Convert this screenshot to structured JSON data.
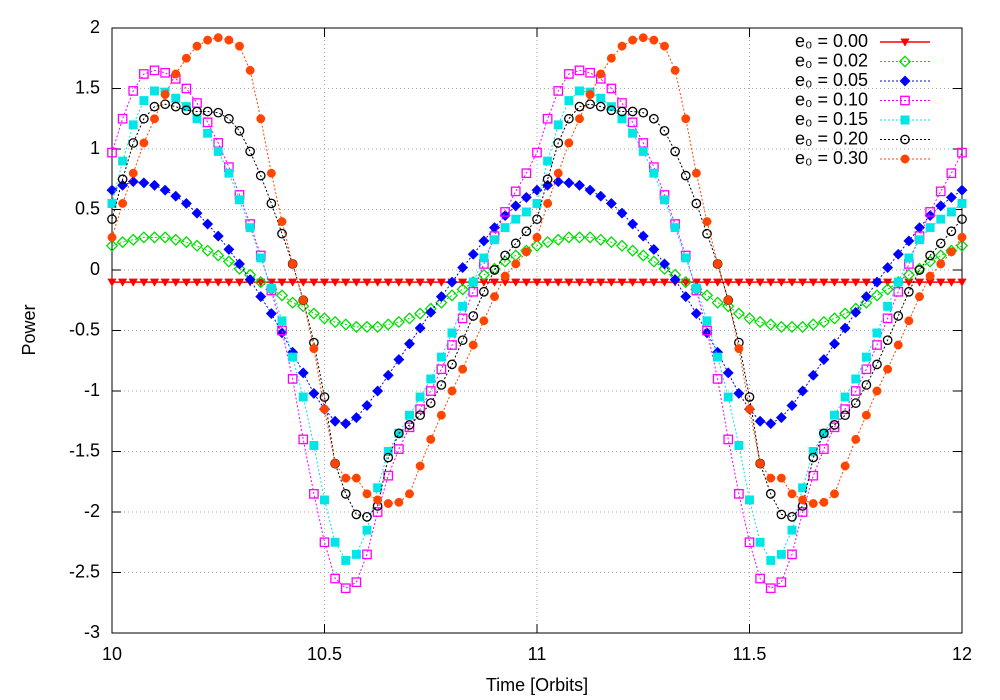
{
  "chart_data": {
    "type": "line",
    "x_label": "Time [Orbits]",
    "y_label": "Power",
    "xlim": [
      10,
      12
    ],
    "xticks": [
      10,
      10.5,
      11,
      11.5,
      12
    ],
    "ylim": [
      -3,
      2
    ],
    "yticks": [
      -3,
      -2.5,
      -2,
      -1.5,
      -1,
      -0.5,
      0,
      0.5,
      1,
      1.5,
      2
    ],
    "grid": true,
    "legend": "upper right",
    "x": [
      10,
      10.025,
      10.05,
      10.075,
      10.1,
      10.125,
      10.15,
      10.175,
      10.2,
      10.225,
      10.25,
      10.275,
      10.3,
      10.325,
      10.35,
      10.375,
      10.4,
      10.425,
      10.45,
      10.475,
      10.5,
      10.525,
      10.55,
      10.575,
      10.6,
      10.625,
      10.65,
      10.675,
      10.7,
      10.725,
      10.75,
      10.775,
      10.8,
      10.825,
      10.85,
      10.875,
      10.9,
      10.925,
      10.95,
      10.975,
      11,
      11.025,
      11.05,
      11.075,
      11.1,
      11.125,
      11.15,
      11.175,
      11.2,
      11.225,
      11.25,
      11.275,
      11.3,
      11.325,
      11.35,
      11.375,
      11.4,
      11.425,
      11.45,
      11.475,
      11.5,
      11.525,
      11.55,
      11.575,
      11.6,
      11.625,
      11.65,
      11.675,
      11.7,
      11.725,
      11.75,
      11.775,
      11.8,
      11.825,
      11.85,
      11.875,
      11.9,
      11.925,
      11.95,
      11.975,
      12
    ],
    "series": [
      {
        "name": "e₀ = 0.00",
        "color": "#ff0000",
        "marker": "triangle-down",
        "line_style": "solid",
        "values": [
          -0.1,
          -0.1,
          -0.1,
          -0.1,
          -0.1,
          -0.1,
          -0.1,
          -0.1,
          -0.1,
          -0.1,
          -0.1,
          -0.1,
          -0.1,
          -0.1,
          -0.1,
          -0.1,
          -0.1,
          -0.1,
          -0.1,
          -0.1,
          -0.1,
          -0.1,
          -0.1,
          -0.1,
          -0.1,
          -0.1,
          -0.1,
          -0.1,
          -0.1,
          -0.1,
          -0.1,
          -0.1,
          -0.1,
          -0.1,
          -0.1,
          -0.1,
          -0.1,
          -0.1,
          -0.1,
          -0.1,
          -0.1,
          -0.1,
          -0.1,
          -0.1,
          -0.1,
          -0.1,
          -0.1,
          -0.1,
          -0.1,
          -0.1,
          -0.1,
          -0.1,
          -0.1,
          -0.1,
          -0.1,
          -0.1,
          -0.1,
          -0.1,
          -0.1,
          -0.1,
          -0.1,
          -0.1,
          -0.1,
          -0.1,
          -0.1,
          -0.1,
          -0.1,
          -0.1,
          -0.1,
          -0.1,
          -0.1,
          -0.1,
          -0.1,
          -0.1,
          -0.1,
          -0.1,
          -0.1,
          -0.1,
          -0.1,
          -0.1,
          -0.1
        ]
      },
      {
        "name": "e₀ = 0.02",
        "color": "#00dd00",
        "marker": "diamond-open",
        "line_style": "dotted",
        "values": [
          0.2,
          0.23,
          0.25,
          0.27,
          0.27,
          0.27,
          0.25,
          0.23,
          0.2,
          0.16,
          0.12,
          0.07,
          0.01,
          -0.04,
          -0.1,
          -0.16,
          -0.21,
          -0.27,
          -0.3,
          -0.36,
          -0.4,
          -0.43,
          -0.45,
          -0.47,
          -0.47,
          -0.47,
          -0.45,
          -0.43,
          -0.4,
          -0.36,
          -0.32,
          -0.27,
          -0.21,
          -0.16,
          -0.1,
          -0.04,
          0.01,
          0.07,
          0.12,
          0.16,
          0.2,
          0.23,
          0.25,
          0.27,
          0.27,
          0.27,
          0.25,
          0.23,
          0.2,
          0.16,
          0.12,
          0.07,
          0.01,
          -0.04,
          -0.1,
          -0.16,
          -0.21,
          -0.27,
          -0.3,
          -0.36,
          -0.4,
          -0.43,
          -0.45,
          -0.47,
          -0.47,
          -0.47,
          -0.45,
          -0.43,
          -0.4,
          -0.36,
          -0.32,
          -0.27,
          -0.21,
          -0.16,
          -0.1,
          -0.04,
          0.01,
          0.07,
          0.12,
          0.16,
          0.2
        ]
      },
      {
        "name": "e₀ = 0.05",
        "color": "#0000ff",
        "marker": "diamond",
        "line_style": "dotted",
        "values": [
          0.66,
          0.7,
          0.73,
          0.72,
          0.7,
          0.66,
          0.61,
          0.55,
          0.47,
          0.38,
          0.28,
          0.17,
          0.05,
          -0.08,
          -0.22,
          -0.36,
          -0.52,
          -0.68,
          -0.85,
          -1.02,
          -1.15,
          -1.25,
          -1.27,
          -1.22,
          -1.12,
          -1.0,
          -0.87,
          -0.74,
          -0.61,
          -0.48,
          -0.35,
          -0.22,
          -0.1,
          0.02,
          0.13,
          0.24,
          0.35,
          0.45,
          0.53,
          0.6,
          0.66,
          0.7,
          0.73,
          0.72,
          0.7,
          0.66,
          0.61,
          0.55,
          0.47,
          0.38,
          0.28,
          0.17,
          0.05,
          -0.08,
          -0.22,
          -0.36,
          -0.52,
          -0.68,
          -0.85,
          -1.02,
          -1.15,
          -1.25,
          -1.27,
          -1.22,
          -1.12,
          -1.0,
          -0.87,
          -0.74,
          -0.61,
          -0.48,
          -0.35,
          -0.22,
          -0.1,
          0.02,
          0.13,
          0.24,
          0.35,
          0.45,
          0.53,
          0.6,
          0.66
        ]
      },
      {
        "name": "e₀ = 0.10",
        "color": "#ff00ff",
        "marker": "square-open",
        "line_style": "dotted",
        "values": [
          0.97,
          1.25,
          1.48,
          1.62,
          1.65,
          1.63,
          1.58,
          1.5,
          1.38,
          1.22,
          1.05,
          0.85,
          0.62,
          0.38,
          0.12,
          -0.17,
          -0.5,
          -0.9,
          -1.4,
          -1.85,
          -2.25,
          -2.55,
          -2.63,
          -2.58,
          -2.35,
          -2.0,
          -1.7,
          -1.48,
          -1.3,
          -1.15,
          -1.0,
          -0.82,
          -0.62,
          -0.4,
          -0.18,
          0.05,
          0.28,
          0.48,
          0.65,
          0.8,
          0.97,
          1.25,
          1.48,
          1.62,
          1.65,
          1.63,
          1.58,
          1.5,
          1.38,
          1.22,
          1.05,
          0.85,
          0.62,
          0.38,
          0.12,
          -0.17,
          -0.5,
          -0.9,
          -1.4,
          -1.85,
          -2.25,
          -2.55,
          -2.63,
          -2.58,
          -2.35,
          -2.0,
          -1.7,
          -1.48,
          -1.3,
          -1.15,
          -1.0,
          -0.82,
          -0.62,
          -0.4,
          -0.18,
          0.05,
          0.28,
          0.48,
          0.65,
          0.8,
          0.97
        ]
      },
      {
        "name": "e₀ = 0.15",
        "color": "#00e5e5",
        "marker": "square",
        "line_style": "dotted",
        "values": [
          0.55,
          0.9,
          1.2,
          1.4,
          1.48,
          1.47,
          1.42,
          1.35,
          1.25,
          1.13,
          0.98,
          0.8,
          0.58,
          0.35,
          0.1,
          -0.15,
          -0.42,
          -0.72,
          -1.05,
          -1.45,
          -1.9,
          -2.25,
          -2.4,
          -2.35,
          -2.15,
          -1.8,
          -1.5,
          -1.35,
          -1.2,
          -1.05,
          -0.9,
          -0.72,
          -0.52,
          -0.3,
          -0.1,
          0.1,
          0.25,
          0.35,
          0.42,
          0.48,
          0.55,
          0.9,
          1.2,
          1.4,
          1.48,
          1.47,
          1.42,
          1.35,
          1.25,
          1.13,
          0.98,
          0.8,
          0.58,
          0.35,
          0.1,
          -0.15,
          -0.42,
          -0.72,
          -1.05,
          -1.45,
          -1.9,
          -2.25,
          -2.4,
          -2.35,
          -2.15,
          -1.8,
          -1.5,
          -1.35,
          -1.2,
          -1.05,
          -0.9,
          -0.72,
          -0.52,
          -0.3,
          -0.1,
          0.1,
          0.25,
          0.35,
          0.42,
          0.48,
          0.55
        ]
      },
      {
        "name": "e₀ = 0.20",
        "color": "#000000",
        "marker": "circle-open",
        "line_style": "dotted",
        "values": [
          0.42,
          0.75,
          1.05,
          1.25,
          1.35,
          1.37,
          1.35,
          1.32,
          1.31,
          1.31,
          1.3,
          1.25,
          1.15,
          0.98,
          0.78,
          0.55,
          0.3,
          0.05,
          -0.25,
          -0.6,
          -1.05,
          -1.6,
          -1.85,
          -2.02,
          -2.04,
          -1.95,
          -1.55,
          -1.35,
          -1.28,
          -1.2,
          -1.1,
          -0.95,
          -0.78,
          -0.58,
          -0.38,
          -0.18,
          0.0,
          0.12,
          0.22,
          0.32,
          0.42,
          0.75,
          1.05,
          1.25,
          1.35,
          1.37,
          1.35,
          1.32,
          1.31,
          1.31,
          1.3,
          1.25,
          1.15,
          0.98,
          0.78,
          0.55,
          0.3,
          0.05,
          -0.25,
          -0.6,
          -1.05,
          -1.6,
          -1.85,
          -2.02,
          -2.04,
          -1.95,
          -1.55,
          -1.35,
          -1.28,
          -1.2,
          -1.1,
          -0.95,
          -0.78,
          -0.58,
          -0.38,
          -0.18,
          0.0,
          0.12,
          0.22,
          0.32,
          0.42
        ]
      },
      {
        "name": "e₀ = 0.30",
        "color": "#ff4500",
        "marker": "circle",
        "line_style": "dotted",
        "values": [
          0.27,
          0.55,
          0.8,
          1.05,
          1.25,
          1.45,
          1.62,
          1.75,
          1.85,
          1.9,
          1.92,
          1.9,
          1.85,
          1.65,
          1.25,
          0.8,
          0.4,
          0.05,
          -0.25,
          -0.65,
          -1.15,
          -1.6,
          -1.72,
          -1.72,
          -1.85,
          -1.9,
          -1.93,
          -1.92,
          -1.85,
          -1.62,
          -1.4,
          -1.2,
          -1.0,
          -0.82,
          -0.62,
          -0.42,
          -0.22,
          -0.05,
          0.05,
          0.15,
          0.27,
          0.55,
          0.8,
          1.05,
          1.25,
          1.45,
          1.62,
          1.75,
          1.85,
          1.9,
          1.92,
          1.9,
          1.85,
          1.65,
          1.25,
          0.8,
          0.4,
          0.05,
          -0.25,
          -0.65,
          -1.15,
          -1.6,
          -1.72,
          -1.72,
          -1.85,
          -1.9,
          -1.93,
          -1.92,
          -1.85,
          -1.62,
          -1.4,
          -1.2,
          -1.0,
          -0.82,
          -0.62,
          -0.42,
          -0.22,
          -0.05,
          0.05,
          0.15,
          0.27
        ]
      }
    ]
  }
}
